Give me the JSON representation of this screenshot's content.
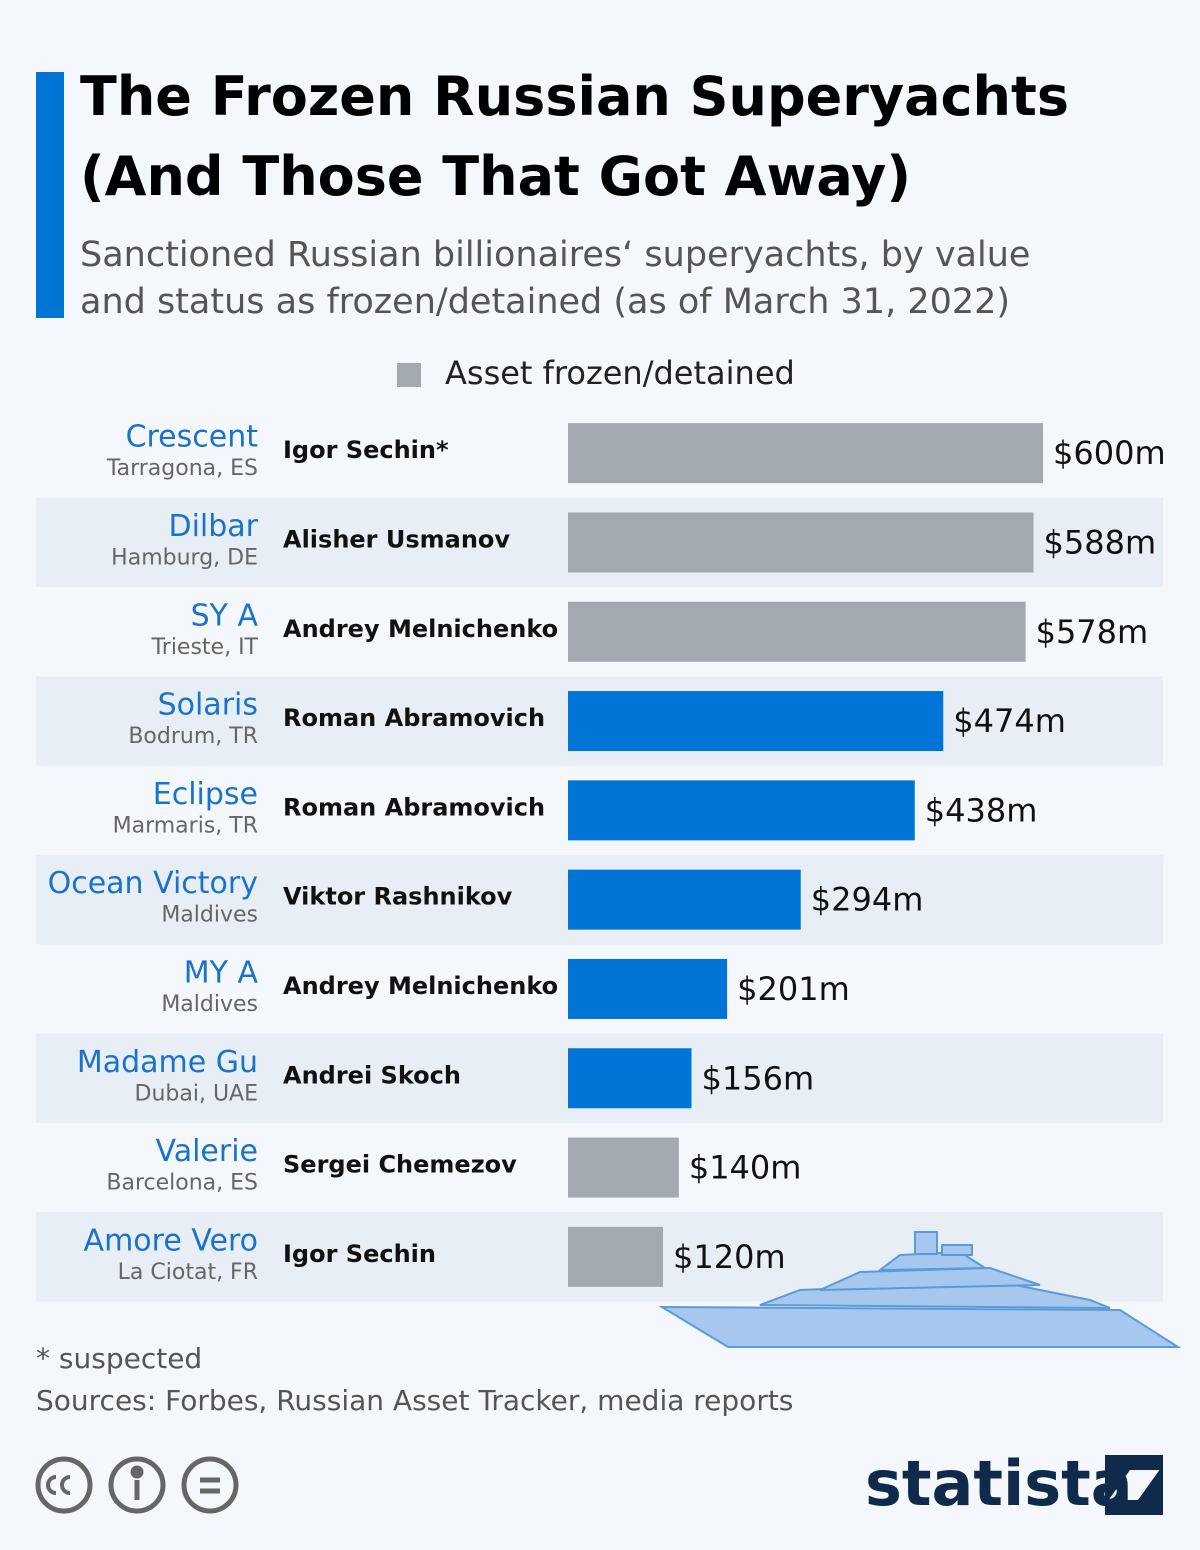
{
  "chart_data": {
    "type": "bar",
    "title": "The Frozen Russian Superyachts (And Those That Got Away)",
    "subtitle": "Sanctioned Russian billionaires‘ superyachts, by value and status as frozen/detained (as of March 31, 2022)",
    "legend": {
      "label": "Asset frozen/detained",
      "color": "#a2a9b0"
    },
    "categories": [
      "Crescent",
      "Dilbar",
      "SY A",
      "Solaris",
      "Eclipse",
      "Ocean Victory",
      "MY A",
      "Madame Gu",
      "Valerie",
      "Amore Vero"
    ],
    "locations": [
      "Tarragona, ES",
      "Hamburg, DE",
      "Trieste, IT",
      "Bodrum, TR",
      "Marmaris, TR",
      "Maldives",
      "Maldives",
      "Dubai, UAE",
      "Barcelona, ES",
      "La Ciotat, FR"
    ],
    "owners": [
      "Igor Sechin*",
      "Alisher Usmanov",
      "Andrey Melnichenko",
      "Roman Abramovich",
      "Roman Abramovich",
      "Viktor Rashnikov",
      "Andrey Melnichenko",
      "Andrei Skoch",
      "Sergei Chemezov",
      "Igor Sechin"
    ],
    "values": [
      600,
      588,
      578,
      474,
      438,
      294,
      201,
      156,
      140,
      120
    ],
    "value_labels": [
      "$600m",
      "$588m",
      "$578m",
      "$474m",
      "$438m",
      "$294m",
      "$201m",
      "$156m",
      "$140m",
      "$120m"
    ],
    "colors": [
      "#a2a9b0",
      "#a2a9b0",
      "#a2a9b0",
      "#0075d6",
      "#0075d6",
      "#0075d6",
      "#0075d6",
      "#0075d6",
      "#a2a9b0",
      "#a2a9b0"
    ],
    "footnote": "* suspected",
    "source": "Sources: Forbes, Russian Asset Tracker, media reports",
    "brand": "statista"
  }
}
